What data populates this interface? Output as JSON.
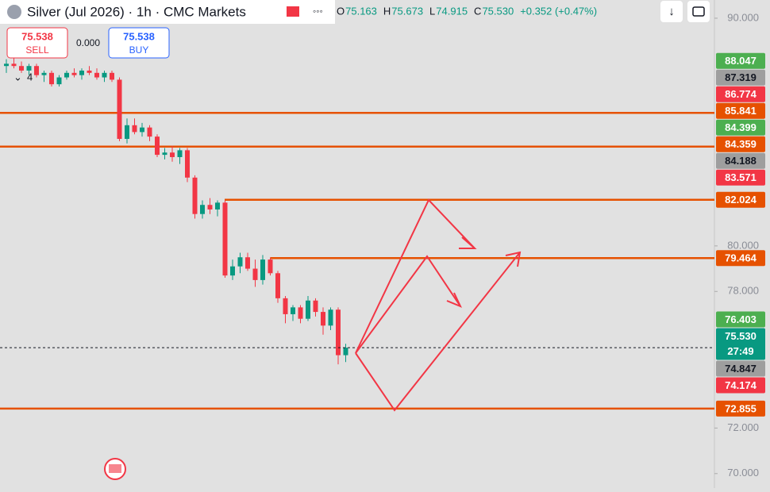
{
  "header": {
    "symbol": "Silver (Jul 2026) · 1h · CMC Markets",
    "ohlc": [
      {
        "key": "O",
        "value": "75.163"
      },
      {
        "key": "H",
        "value": "75.673"
      },
      {
        "key": "L",
        "value": "74.915"
      },
      {
        "key": "C",
        "value": "75.530"
      }
    ],
    "change": "+0.352 (+0.47%)"
  },
  "trade": {
    "sell_price": "75.538",
    "sell_label": "SELL",
    "spread": "0.000",
    "buy_price": "75.538",
    "buy_label": "BUY"
  },
  "indicators_count": "4",
  "chart_data": {
    "type": "candlestick",
    "up_color": "#089981",
    "down_color": "#f23645",
    "open": [
      87.9,
      88.0,
      87.9,
      87.7,
      87.9,
      87.5,
      87.6,
      87.1,
      87.4,
      87.6,
      87.5,
      87.7,
      87.6,
      87.4,
      87.6,
      87.3,
      84.7,
      85.3,
      85.0,
      85.2,
      84.8,
      84.0,
      84.1,
      83.9,
      84.2,
      83.0,
      81.4,
      81.8,
      81.6,
      81.9,
      78.7,
      79.1,
      79.5,
      79.0,
      78.5,
      79.4,
      78.8,
      77.7,
      77.0,
      77.3,
      76.8,
      77.6,
      77.1,
      76.5,
      77.2,
      75.2
    ],
    "high": [
      88.2,
      88.3,
      88.1,
      88.0,
      88.0,
      87.7,
      87.7,
      87.5,
      87.7,
      87.8,
      87.8,
      87.9,
      87.8,
      87.7,
      87.7,
      87.4,
      85.6,
      85.6,
      85.4,
      85.3,
      84.9,
      84.3,
      84.4,
      84.3,
      84.3,
      83.1,
      82.0,
      82.1,
      82.0,
      82.0,
      79.4,
      79.7,
      79.7,
      79.4,
      79.6,
      79.5,
      78.9,
      77.8,
      77.4,
      77.4,
      77.8,
      77.7,
      77.3,
      77.3,
      77.3,
      75.7
    ],
    "low": [
      87.6,
      87.8,
      87.6,
      87.5,
      87.4,
      87.2,
      87.0,
      87.0,
      87.3,
      87.4,
      87.3,
      87.5,
      87.3,
      87.2,
      87.2,
      84.6,
      84.5,
      84.9,
      84.8,
      84.6,
      83.9,
      83.8,
      83.7,
      83.6,
      82.8,
      81.2,
      81.2,
      81.4,
      81.3,
      78.6,
      78.5,
      78.8,
      78.9,
      78.2,
      78.3,
      78.7,
      77.5,
      76.6,
      76.7,
      76.6,
      76.7,
      76.9,
      76.1,
      76.3,
      74.8,
      74.9
    ],
    "close": [
      88.0,
      87.9,
      87.7,
      87.9,
      87.5,
      87.6,
      87.1,
      87.4,
      87.6,
      87.5,
      87.7,
      87.6,
      87.4,
      87.6,
      87.3,
      84.7,
      85.3,
      85.0,
      85.2,
      84.8,
      84.0,
      84.1,
      83.9,
      84.2,
      83.0,
      81.4,
      81.8,
      81.6,
      81.9,
      78.7,
      79.1,
      79.5,
      79.0,
      78.5,
      79.4,
      78.8,
      77.7,
      77.0,
      77.3,
      76.8,
      77.6,
      77.1,
      76.5,
      77.2,
      75.2,
      75.53
    ],
    "ylim": [
      69.4,
      90.8
    ],
    "yticks": [
      {
        "value": 90,
        "label": "90.000"
      },
      {
        "value": 80,
        "label": "80.000"
      },
      {
        "value": 78,
        "label": "78.000"
      },
      {
        "value": 72,
        "label": "72.000"
      },
      {
        "value": 70,
        "label": "70.000"
      }
    ],
    "levels": [
      {
        "value": 85.841,
        "color": "#e65100"
      },
      {
        "value": 84.359,
        "color": "#e65100"
      },
      {
        "value": 82.024,
        "color": "#e65100"
      },
      {
        "value": 79.464,
        "color": "#e65100"
      },
      {
        "value": 72.855,
        "color": "#e65100"
      }
    ],
    "price_labels": [
      {
        "value": 88.047,
        "color": "#4caf50",
        "text_color": "#ffffff"
      },
      {
        "value": 87.319,
        "color": "#9e9e9e",
        "text_color": "#131722"
      },
      {
        "value": 86.774,
        "color": "#f23645",
        "text_color": "#ffffff"
      },
      {
        "value": 85.841,
        "color": "#e65100",
        "text_color": "#ffffff"
      },
      {
        "value": 84.399,
        "color": "#4caf50",
        "text_color": "#ffffff"
      },
      {
        "value": 84.359,
        "color": "#e65100",
        "text_color": "#ffffff"
      },
      {
        "value": 84.188,
        "color": "#9e9e9e",
        "text_color": "#131722"
      },
      {
        "value": 83.571,
        "color": "#f23645",
        "text_color": "#ffffff"
      },
      {
        "value": 82.024,
        "color": "#e65100",
        "text_color": "#ffffff"
      },
      {
        "value": 79.464,
        "color": "#e65100",
        "text_color": "#ffffff"
      },
      {
        "value": 76.403,
        "color": "#4caf50",
        "text_color": "#ffffff"
      },
      {
        "value": 75.53,
        "label": "75.530",
        "countdown": "27:49",
        "color": "#089981",
        "text_color": "#ffffff"
      },
      {
        "value": 74.847,
        "color": "#9e9e9e",
        "text_color": "#131722"
      },
      {
        "value": 74.174,
        "color": "#f23645",
        "text_color": "#ffffff"
      },
      {
        "value": 72.855,
        "color": "#e65100",
        "text_color": "#ffffff"
      }
    ]
  }
}
